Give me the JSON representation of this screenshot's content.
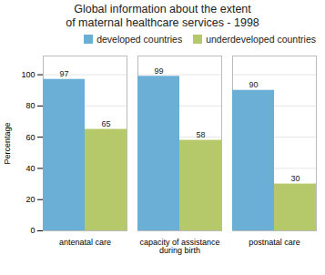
{
  "chart_data": {
    "type": "bar",
    "title": "Global information about the extent\nof maternal healthcare services - 1998",
    "categories": [
      "antenatal care",
      "capacity of assistance\nduring birth",
      "postnatal care"
    ],
    "series": [
      {
        "name": "developed countries",
        "color": "#6baed6",
        "values": [
          97,
          99,
          90
        ]
      },
      {
        "name": "underdeveloped countries",
        "color": "#b5c96a",
        "values": [
          65,
          58,
          30
        ]
      }
    ],
    "ylabel": "Percentage",
    "ylim": [
      0,
      112
    ],
    "yticks": [
      0,
      20,
      40,
      60,
      80,
      100
    ],
    "grid": true,
    "legend": "upper right",
    "data_labels": true
  }
}
